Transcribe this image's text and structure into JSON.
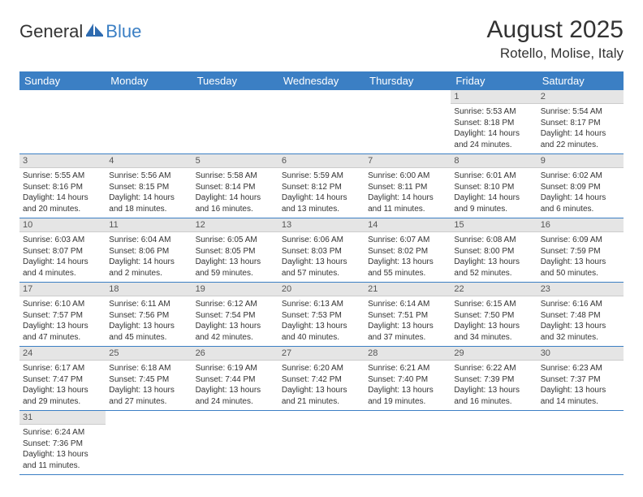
{
  "brand": {
    "general": "General",
    "blue": "Blue"
  },
  "title": "August 2025",
  "location": "Rotello, Molise, Italy",
  "dayHeaders": [
    "Sunday",
    "Monday",
    "Tuesday",
    "Wednesday",
    "Thursday",
    "Friday",
    "Saturday"
  ],
  "colors": {
    "headerBg": "#3b7fc4",
    "dayNumBg": "#e5e5e5"
  },
  "weeks": [
    [
      null,
      null,
      null,
      null,
      null,
      {
        "n": "1",
        "sr": "5:53 AM",
        "ss": "8:18 PM",
        "dl": "14 hours and 24 minutes."
      },
      {
        "n": "2",
        "sr": "5:54 AM",
        "ss": "8:17 PM",
        "dl": "14 hours and 22 minutes."
      }
    ],
    [
      {
        "n": "3",
        "sr": "5:55 AM",
        "ss": "8:16 PM",
        "dl": "14 hours and 20 minutes."
      },
      {
        "n": "4",
        "sr": "5:56 AM",
        "ss": "8:15 PM",
        "dl": "14 hours and 18 minutes."
      },
      {
        "n": "5",
        "sr": "5:58 AM",
        "ss": "8:14 PM",
        "dl": "14 hours and 16 minutes."
      },
      {
        "n": "6",
        "sr": "5:59 AM",
        "ss": "8:12 PM",
        "dl": "14 hours and 13 minutes."
      },
      {
        "n": "7",
        "sr": "6:00 AM",
        "ss": "8:11 PM",
        "dl": "14 hours and 11 minutes."
      },
      {
        "n": "8",
        "sr": "6:01 AM",
        "ss": "8:10 PM",
        "dl": "14 hours and 9 minutes."
      },
      {
        "n": "9",
        "sr": "6:02 AM",
        "ss": "8:09 PM",
        "dl": "14 hours and 6 minutes."
      }
    ],
    [
      {
        "n": "10",
        "sr": "6:03 AM",
        "ss": "8:07 PM",
        "dl": "14 hours and 4 minutes."
      },
      {
        "n": "11",
        "sr": "6:04 AM",
        "ss": "8:06 PM",
        "dl": "14 hours and 2 minutes."
      },
      {
        "n": "12",
        "sr": "6:05 AM",
        "ss": "8:05 PM",
        "dl": "13 hours and 59 minutes."
      },
      {
        "n": "13",
        "sr": "6:06 AM",
        "ss": "8:03 PM",
        "dl": "13 hours and 57 minutes."
      },
      {
        "n": "14",
        "sr": "6:07 AM",
        "ss": "8:02 PM",
        "dl": "13 hours and 55 minutes."
      },
      {
        "n": "15",
        "sr": "6:08 AM",
        "ss": "8:00 PM",
        "dl": "13 hours and 52 minutes."
      },
      {
        "n": "16",
        "sr": "6:09 AM",
        "ss": "7:59 PM",
        "dl": "13 hours and 50 minutes."
      }
    ],
    [
      {
        "n": "17",
        "sr": "6:10 AM",
        "ss": "7:57 PM",
        "dl": "13 hours and 47 minutes."
      },
      {
        "n": "18",
        "sr": "6:11 AM",
        "ss": "7:56 PM",
        "dl": "13 hours and 45 minutes."
      },
      {
        "n": "19",
        "sr": "6:12 AM",
        "ss": "7:54 PM",
        "dl": "13 hours and 42 minutes."
      },
      {
        "n": "20",
        "sr": "6:13 AM",
        "ss": "7:53 PM",
        "dl": "13 hours and 40 minutes."
      },
      {
        "n": "21",
        "sr": "6:14 AM",
        "ss": "7:51 PM",
        "dl": "13 hours and 37 minutes."
      },
      {
        "n": "22",
        "sr": "6:15 AM",
        "ss": "7:50 PM",
        "dl": "13 hours and 34 minutes."
      },
      {
        "n": "23",
        "sr": "6:16 AM",
        "ss": "7:48 PM",
        "dl": "13 hours and 32 minutes."
      }
    ],
    [
      {
        "n": "24",
        "sr": "6:17 AM",
        "ss": "7:47 PM",
        "dl": "13 hours and 29 minutes."
      },
      {
        "n": "25",
        "sr": "6:18 AM",
        "ss": "7:45 PM",
        "dl": "13 hours and 27 minutes."
      },
      {
        "n": "26",
        "sr": "6:19 AM",
        "ss": "7:44 PM",
        "dl": "13 hours and 24 minutes."
      },
      {
        "n": "27",
        "sr": "6:20 AM",
        "ss": "7:42 PM",
        "dl": "13 hours and 21 minutes."
      },
      {
        "n": "28",
        "sr": "6:21 AM",
        "ss": "7:40 PM",
        "dl": "13 hours and 19 minutes."
      },
      {
        "n": "29",
        "sr": "6:22 AM",
        "ss": "7:39 PM",
        "dl": "13 hours and 16 minutes."
      },
      {
        "n": "30",
        "sr": "6:23 AM",
        "ss": "7:37 PM",
        "dl": "13 hours and 14 minutes."
      }
    ],
    [
      {
        "n": "31",
        "sr": "6:24 AM",
        "ss": "7:36 PM",
        "dl": "13 hours and 11 minutes."
      },
      null,
      null,
      null,
      null,
      null,
      null
    ]
  ],
  "labels": {
    "sunrise": "Sunrise: ",
    "sunset": "Sunset: ",
    "daylight": "Daylight: "
  }
}
